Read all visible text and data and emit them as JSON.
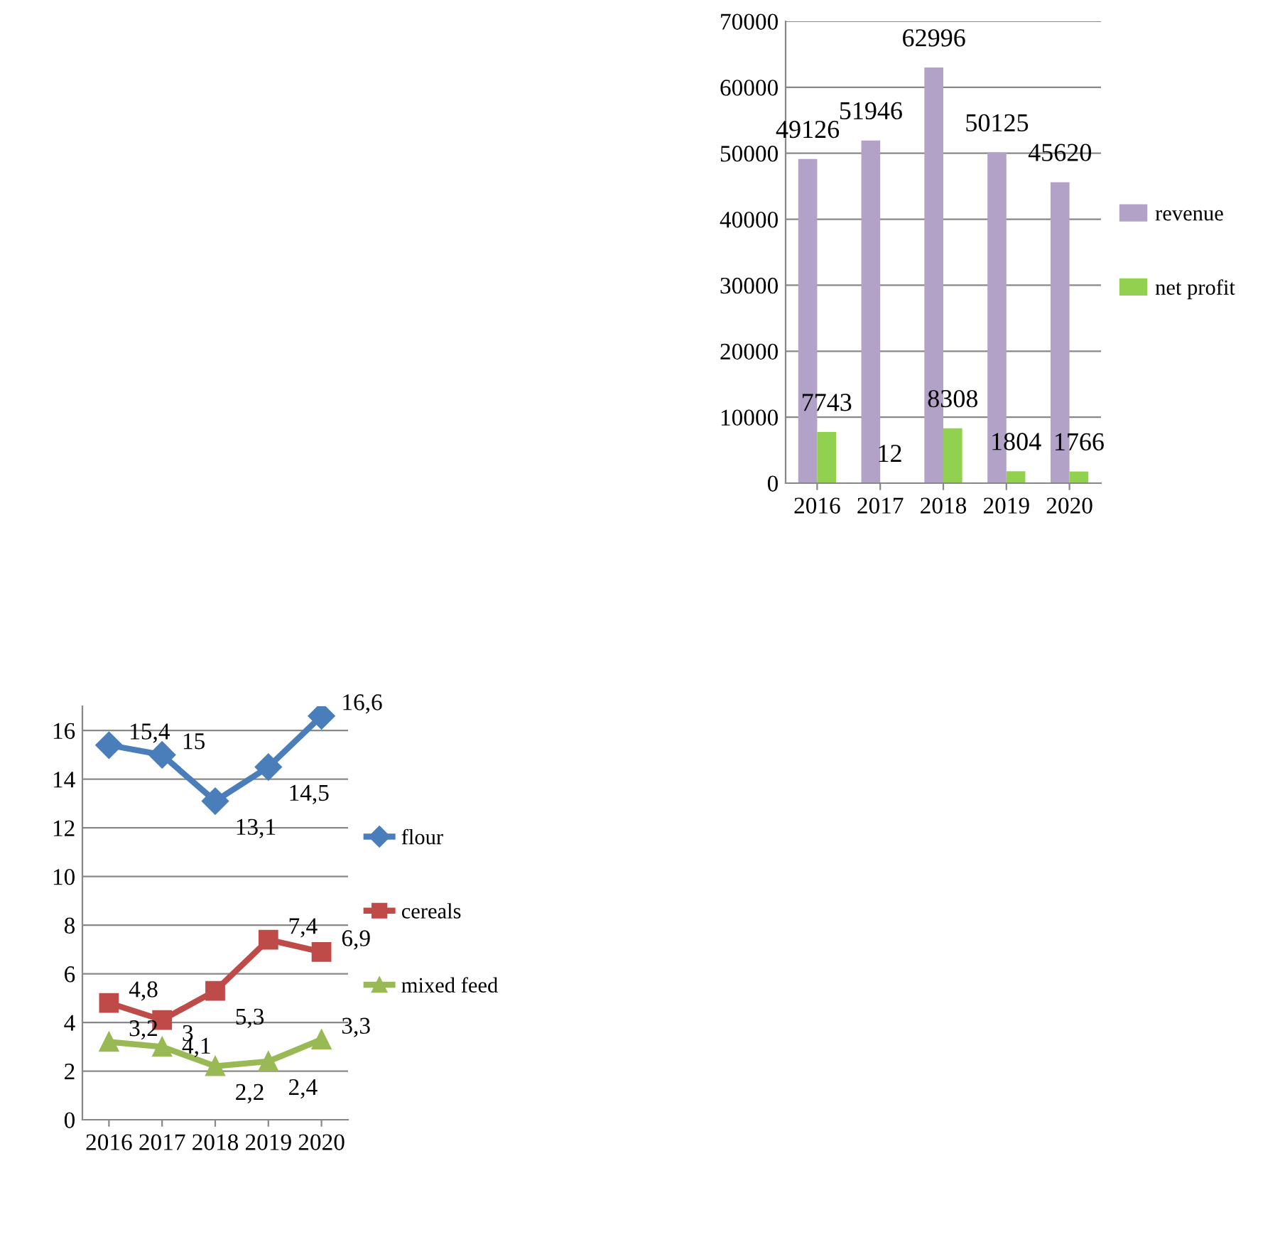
{
  "chart_data": [
    {
      "type": "bar",
      "categories": [
        "2016",
        "2017",
        "2018",
        "2019",
        "2020"
      ],
      "series": [
        {
          "name": "revenue",
          "color": "#b3a2c7",
          "values": [
            49126,
            51946,
            62996,
            50125,
            45620
          ]
        },
        {
          "name": "net profit",
          "color": "#92d050",
          "values": [
            7743,
            12,
            8308,
            1804,
            1766
          ]
        }
      ],
      "ylim": [
        0,
        70000
      ],
      "yticks": [
        0,
        10000,
        20000,
        30000,
        40000,
        50000,
        60000,
        70000
      ],
      "grid": "y",
      "legend": "right",
      "data_labels": true
    },
    {
      "type": "line",
      "categories": [
        "2016",
        "2017",
        "2018",
        "2019",
        "2020"
      ],
      "series": [
        {
          "name": "flour",
          "color": "#4a7ebb",
          "marker": "diamond",
          "values": [
            15.4,
            15,
            13.1,
            14.5,
            16.6
          ],
          "value_labels": [
            "15,4",
            "15",
            "13,1",
            "14,5",
            "16,6"
          ]
        },
        {
          "name": "cereals",
          "color": "#be4b48",
          "marker": "square",
          "values": [
            4.8,
            4.1,
            5.3,
            7.4,
            6.9
          ],
          "value_labels": [
            "4,8",
            "4,1",
            "5,3",
            "7,4",
            "6,9"
          ]
        },
        {
          "name": "mixed feed",
          "color": "#98b954",
          "marker": "triangle",
          "values": [
            3.2,
            3,
            2.2,
            2.4,
            3.3
          ],
          "value_labels": [
            "3,2",
            "3",
            "2,2",
            "2,4",
            "3,3"
          ]
        }
      ],
      "ylim": [
        0,
        17
      ],
      "yticks": [
        0,
        2,
        4,
        6,
        8,
        10,
        12,
        14,
        16
      ],
      "grid": "y",
      "legend": "right",
      "line_style": "solid"
    }
  ]
}
